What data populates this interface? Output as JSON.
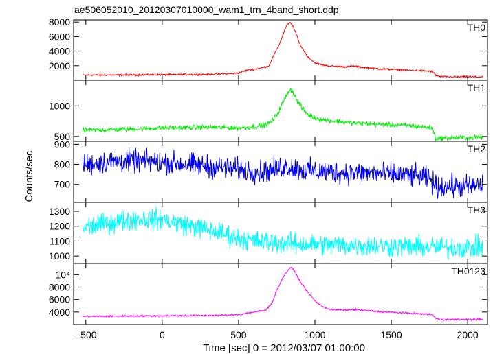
{
  "title": "ae506052010_20120307010000_wam1_trn_4band_short.qdp",
  "ylabel": "Counts/sec",
  "xlabel": "Time [sec] 0 = 2012/03/07 01:00:00",
  "chart_data": {
    "type": "line",
    "title": "ae506052010_20120307010000_wam1_trn_4band_short.qdp",
    "xlabel": "Time [sec] 0 = 2012/03/07 01:00:00",
    "ylabel": "Counts/sec",
    "xlim": [
      -580,
      2130
    ],
    "x_ticks": [
      -500,
      0,
      500,
      1000,
      1500,
      2000
    ],
    "x_tick_labels": [
      "−500",
      "0",
      "500",
      "1000",
      "1500",
      "2000"
    ],
    "panels": [
      {
        "name": "TH0",
        "color": "#ff0000",
        "ylim": [
          0,
          8300
        ],
        "ticks": [
          2000,
          4000,
          6000,
          8000
        ],
        "tick_labels": [
          "2000",
          "4000",
          "6000",
          "8000"
        ],
        "noise": 60,
        "x": [
          -520,
          -300,
          0,
          300,
          450,
          500,
          560,
          600,
          650,
          700,
          720,
          750,
          780,
          800,
          820,
          840,
          860,
          880,
          900,
          950,
          1000,
          1050,
          1100,
          1200,
          1260,
          1300,
          1400,
          1500,
          1600,
          1700,
          1770,
          1790,
          1820,
          1900,
          2000,
          2100
        ],
        "y": [
          700,
          720,
          750,
          800,
          900,
          1000,
          1400,
          1500,
          1700,
          2000,
          3000,
          4200,
          5600,
          6800,
          7700,
          7900,
          7300,
          6200,
          5000,
          3300,
          2400,
          2100,
          1950,
          1850,
          1950,
          1800,
          1600,
          1500,
          1400,
          1300,
          1200,
          700,
          480,
          460,
          460,
          460
        ]
      },
      {
        "name": "TH1",
        "color": "#00ee00",
        "ylim": [
          420,
          1420
        ],
        "ticks": [
          500,
          1000
        ],
        "tick_labels": [
          "500",
          "1000"
        ],
        "noise": 20,
        "x": [
          -520,
          -200,
          0,
          300,
          500,
          600,
          680,
          720,
          760,
          800,
          830,
          850,
          880,
          920,
          960,
          1000,
          1100,
          1250,
          1400,
          1600,
          1770,
          1790,
          1820,
          1900,
          2000,
          2100
        ],
        "y": [
          600,
          620,
          640,
          650,
          640,
          660,
          690,
          750,
          900,
          1100,
          1260,
          1260,
          1100,
          950,
          850,
          800,
          760,
          720,
          700,
          680,
          640,
          470,
          470,
          480,
          480,
          490
        ]
      },
      {
        "name": "TH2",
        "color": "#0000ee",
        "ylim": [
          610,
          915
        ],
        "ticks": [
          700,
          800,
          900
        ],
        "tick_labels": [
          "700",
          "800",
          "900"
        ],
        "noise": 28,
        "x": [
          -520,
          -300,
          -100,
          100,
          300,
          500,
          650,
          760,
          800,
          850,
          900,
          1000,
          1200,
          1400,
          1600,
          1750,
          1790,
          1850,
          2000,
          2100
        ],
        "y": [
          800,
          815,
          815,
          805,
          790,
          775,
          760,
          780,
          790,
          785,
          775,
          765,
          760,
          755,
          745,
          730,
          690,
          690,
          690,
          695
        ]
      },
      {
        "name": "TH3",
        "color": "#00ffff",
        "ylim": [
          950,
          1360
        ],
        "ticks": [
          1000,
          1100,
          1200,
          1300
        ],
        "tick_labels": [
          "1000",
          "1100",
          "1200",
          "1300"
        ],
        "noise": 35,
        "x": [
          -520,
          -300,
          -150,
          0,
          200,
          400,
          500,
          600,
          750,
          900,
          1100,
          1300,
          1500,
          1700,
          1900,
          2100
        ],
        "y": [
          1190,
          1230,
          1250,
          1245,
          1200,
          1150,
          1120,
          1100,
          1090,
          1080,
          1075,
          1070,
          1065,
          1060,
          1055,
          1060
        ]
      },
      {
        "name": "TH0123",
        "color": "#ff00ff",
        "ylim": [
          2000,
          11800
        ],
        "ticks": [
          4000,
          6000,
          8000,
          10000
        ],
        "tick_labels": [
          "4000",
          "6000",
          "8000",
          "10⁴"
        ],
        "noise": 70,
        "x": [
          -520,
          -300,
          0,
          300,
          450,
          500,
          600,
          680,
          720,
          750,
          790,
          820,
          840,
          860,
          880,
          900,
          950,
          1000,
          1050,
          1100,
          1200,
          1260,
          1300,
          1400,
          1550,
          1700,
          1770,
          1790,
          1820,
          1900,
          2000,
          2100
        ],
        "y": [
          3300,
          3350,
          3400,
          3450,
          3500,
          3600,
          4000,
          4300,
          5500,
          7500,
          9500,
          10600,
          11200,
          10800,
          10000,
          9000,
          7300,
          5800,
          4900,
          4400,
          4300,
          4400,
          4300,
          4100,
          3900,
          3700,
          3600,
          3000,
          2800,
          2800,
          2800,
          2850
        ]
      }
    ]
  }
}
